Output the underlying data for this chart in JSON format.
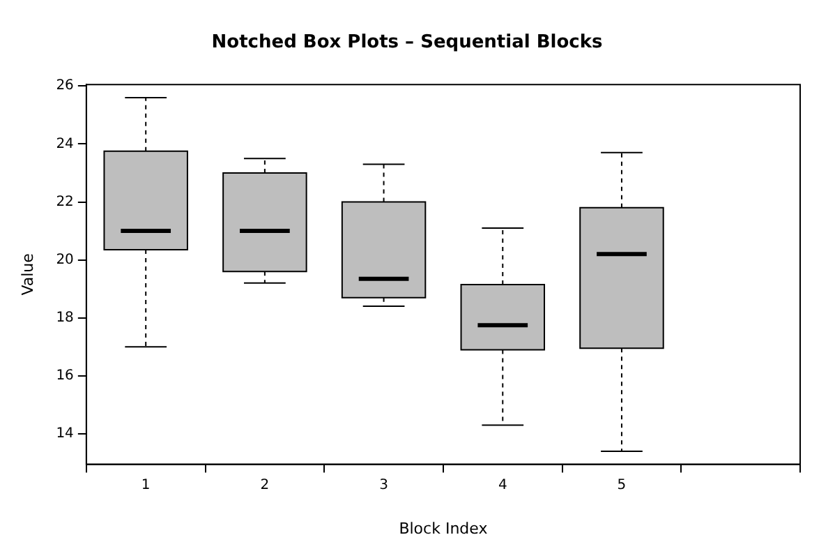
{
  "chart_data": {
    "type": "box",
    "title": "Notched Box Plots – Sequential Blocks",
    "xlabel": "Block Index",
    "ylabel": "Value",
    "categories": [
      "1",
      "2",
      "3",
      "4",
      "5",
      null
    ],
    "boxes": [
      {
        "low": 17.0,
        "q1": 20.35,
        "median": 21.0,
        "q3": 23.75,
        "high": 25.6
      },
      {
        "low": 19.2,
        "q1": 19.6,
        "median": 21.0,
        "q3": 23.0,
        "high": 23.5
      },
      {
        "low": 18.4,
        "q1": 18.7,
        "median": 19.35,
        "q3": 22.0,
        "high": 23.3
      },
      {
        "low": 14.3,
        "q1": 16.9,
        "median": 17.75,
        "q3": 19.15,
        "high": 21.1
      },
      {
        "low": 13.4,
        "q1": 16.95,
        "median": 20.2,
        "q3": 21.8,
        "high": 23.7
      },
      null
    ],
    "color": "#bebebe",
    "ylim": [
      12.95,
      26.05
    ],
    "yticks": [
      14,
      16,
      18,
      20,
      22,
      24,
      26
    ],
    "grid": false,
    "legend": false
  }
}
